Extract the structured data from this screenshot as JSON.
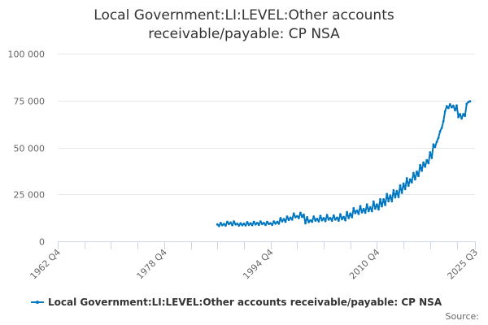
{
  "title": {
    "line1": "Local Government:LI:LEVEL:Other accounts",
    "line2": "receivable/payable: CP NSA"
  },
  "legend": {
    "label": "Local Government:LI:LEVEL:Other accounts receivable/payable: CP NSA",
    "color": "#0077c0"
  },
  "source_label": "Source:",
  "chart_data": {
    "type": "line",
    "title": "Local Government:LI:LEVEL:Other accounts receivable/payable: CP NSA",
    "xlabel": "",
    "ylabel": "",
    "ylim": [
      0,
      100000
    ],
    "yticks": [
      0,
      25000,
      50000,
      75000,
      100000
    ],
    "ytick_labels": [
      "0",
      "25 000",
      "50 000",
      "75 000",
      "100 000"
    ],
    "xtick_labels": [
      "1962 Q4",
      "1978 Q4",
      "1994 Q4",
      "2010 Q4",
      "2025 Q3"
    ],
    "x_range": [
      "1962 Q4",
      "2025 Q3"
    ],
    "grid": "horizontal",
    "legend_position": "bottom",
    "series": [
      {
        "name": "Local Government:LI:LEVEL:Other accounts receivable/payable: CP NSA",
        "color": "#0077c0",
        "start": "1986 Q4",
        "frequency": "quarterly",
        "values": [
          9000,
          8200,
          9800,
          8600,
          9200,
          8400,
          10400,
          9200,
          10000,
          8600,
          10600,
          9000,
          9400,
          8400,
          9600,
          8600,
          9400,
          8500,
          10200,
          8800,
          9600,
          8600,
          10400,
          9000,
          9800,
          8800,
          10600,
          9200,
          9800,
          8700,
          10400,
          9200,
          9600,
          8800,
          10600,
          9400,
          10400,
          9400,
          12400,
          10600,
          11800,
          10400,
          13200,
          11400,
          12600,
          11600,
          14800,
          12800,
          13400,
          12400,
          15200,
          13000,
          14200,
          9600,
          12800,
          10200,
          11200,
          10400,
          13200,
          11000,
          12000,
          10600,
          13600,
          11200,
          12400,
          10800,
          14000,
          11600,
          12400,
          11000,
          13800,
          11600,
          12600,
          11000,
          14400,
          11800,
          13000,
          11200,
          15600,
          12400,
          14800,
          12800,
          17600,
          15000,
          16400,
          14600,
          18800,
          15400,
          17200,
          15200,
          19600,
          16000,
          18200,
          16000,
          21200,
          17400,
          19600,
          17000,
          22400,
          18600,
          22400,
          19400,
          25200,
          21400,
          24400,
          21400,
          27200,
          23400,
          26800,
          23600,
          29800,
          25800,
          30800,
          27800,
          33600,
          29600,
          33000,
          31400,
          36400,
          33000,
          37200,
          34800,
          40600,
          37600,
          42000,
          39800,
          43200,
          41600,
          47400,
          44400,
          51600,
          50200,
          53000,
          55000,
          58600,
          60400,
          64000,
          69200,
          72000,
          71000,
          73000,
          71400,
          72200,
          69800,
          72400,
          66200,
          67800,
          65400,
          67800,
          66800,
          73200,
          74200,
          74600
        ]
      }
    ]
  }
}
